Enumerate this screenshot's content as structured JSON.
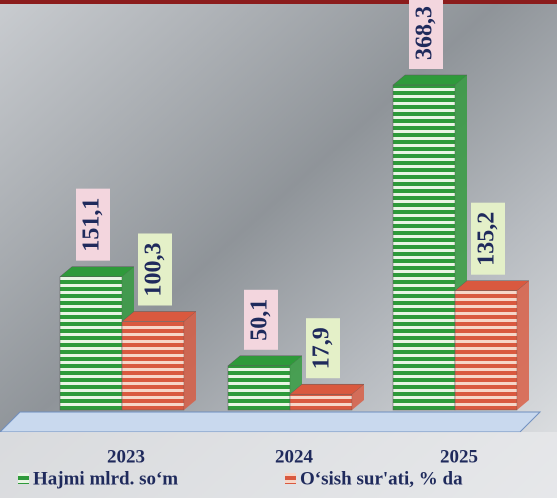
{
  "chart_data": {
    "type": "bar3d",
    "categories": [
      "2023",
      "2024",
      "2025"
    ],
    "series": [
      {
        "name": "Hajmi mlrd. so‘m",
        "color": "#2e9a3a",
        "values": [
          151.1,
          50.1,
          368.3
        ],
        "value_labels": [
          "151,1",
          "50,1",
          "368,3"
        ]
      },
      {
        "name": "O‘sish sur'ati, % da",
        "color": "#d9593f",
        "values": [
          100.3,
          17.9,
          135.2
        ],
        "value_labels": [
          "100,3",
          "17,9",
          "135,2"
        ]
      }
    ]
  }
}
